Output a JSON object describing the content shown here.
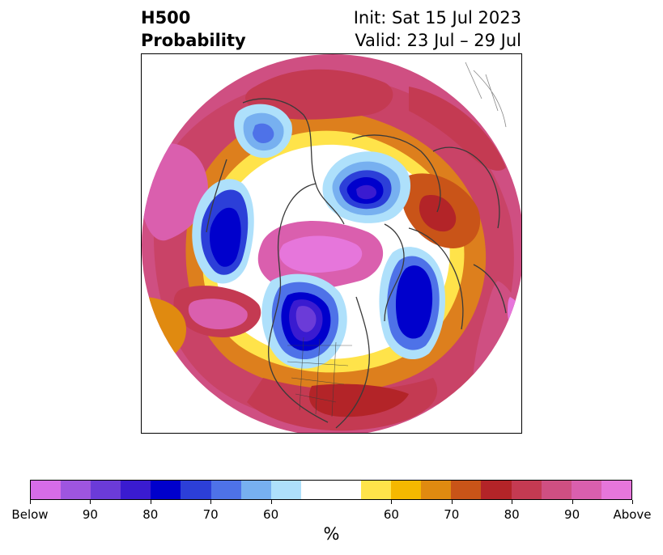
{
  "title": {
    "left_line1": "H500",
    "left_line2": "Probability",
    "right_line1": "Init: Sat 15 Jul 2023",
    "right_line2": "Valid: 23 Jul – 29 Jul"
  },
  "map": {
    "projection": "north-polar-stereographic",
    "field": "500 hPa height probability (above/below normal)",
    "regions": [
      {
        "name": "below-center-arctic",
        "category": "below",
        "level": "80-90"
      },
      {
        "name": "below-central-north-america",
        "category": "below",
        "level": "90"
      },
      {
        "name": "below-north-pacific",
        "category": "below",
        "level": "80"
      },
      {
        "name": "below-north-atlantic",
        "category": "below",
        "level": "80"
      },
      {
        "name": "above-canada-arctic",
        "category": "above",
        "level": "90-Above"
      },
      {
        "name": "above-east-pacific",
        "category": "above",
        "level": "85"
      },
      {
        "name": "above-europe",
        "category": "above",
        "level": "80"
      }
    ]
  },
  "colorbar": {
    "colors": [
      "#d66ce8",
      "#9e55e0",
      "#6b3bd8",
      "#3a1bd0",
      "#0000cc",
      "#2c3fd8",
      "#4e72e8",
      "#77b0f0",
      "#aee0fb",
      "#ffffff",
      "#ffffff",
      "#ffe34a",
      "#f5b800",
      "#e08a10",
      "#c95418",
      "#b32428",
      "#c43a52",
      "#cf4f82",
      "#da5fae",
      "#e676db"
    ],
    "ticks": [
      "Below",
      "90",
      "80",
      "70",
      "60",
      "60",
      "70",
      "80",
      "90",
      "Above"
    ],
    "unit_label": "%"
  }
}
